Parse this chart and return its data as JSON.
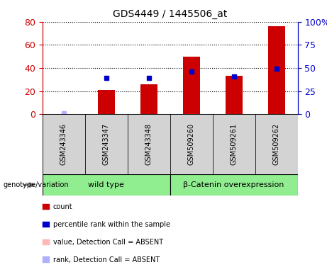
{
  "title": "GDS4449 / 1445506_at",
  "categories": [
    "GSM243346",
    "GSM243347",
    "GSM243348",
    "GSM509260",
    "GSM509261",
    "GSM509262"
  ],
  "red_bars": [
    0,
    21,
    26,
    50,
    33,
    76
  ],
  "blue_dots_pct": [
    1,
    39,
    39,
    46,
    41,
    49
  ],
  "absent_blue_flags": [
    true,
    false,
    false,
    false,
    false,
    false
  ],
  "absent_red_flags": [
    false,
    false,
    false,
    false,
    false,
    false
  ],
  "left_ylim": [
    0,
    80
  ],
  "right_ylim": [
    0,
    100
  ],
  "left_yticks": [
    0,
    20,
    40,
    60,
    80
  ],
  "right_yticks": [
    0,
    25,
    50,
    75,
    100
  ],
  "right_yticklabels": [
    "0",
    "25",
    "50",
    "75",
    "100%"
  ],
  "groups": [
    {
      "label": "wild type",
      "cols": [
        0,
        1,
        2
      ],
      "color": "#90ee90"
    },
    {
      "label": "β-Catenin overexpression",
      "cols": [
        3,
        4,
        5
      ],
      "color": "#90ee90"
    }
  ],
  "genotype_label": "genotype/variation",
  "legend_items": [
    {
      "color": "#cc0000",
      "label": "count"
    },
    {
      "color": "#0000cc",
      "label": "percentile rank within the sample"
    },
    {
      "color": "#ffb6b6",
      "label": "value, Detection Call = ABSENT"
    },
    {
      "color": "#b0b0ff",
      "label": "rank, Detection Call = ABSENT"
    }
  ],
  "bar_color": "#cc0000",
  "dot_color": "#0000cc",
  "absent_bar_color": "#ffb6b6",
  "absent_dot_color": "#b0b0ff",
  "sample_box_color": "#d3d3d3",
  "plot_bg_color": "#ffffff",
  "left_axis_color": "#cc0000",
  "right_axis_color": "#0000cc",
  "bar_width": 0.4
}
